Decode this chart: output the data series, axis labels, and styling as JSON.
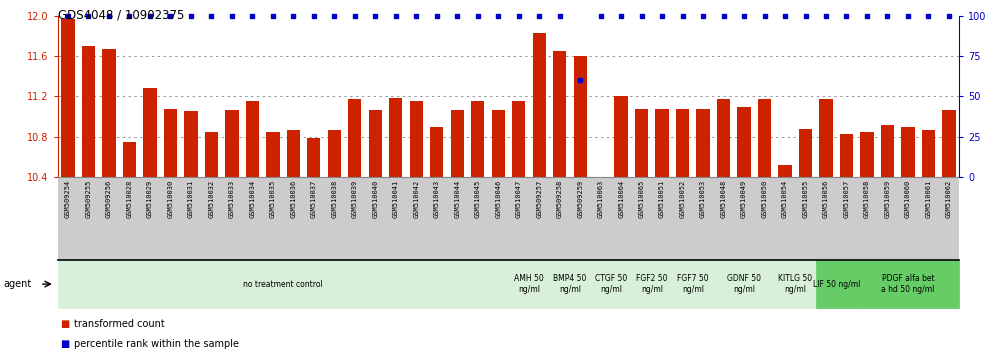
{
  "title": "GDS4048 / 10902375",
  "samples": [
    "GSM509254",
    "GSM509255",
    "GSM509256",
    "GSM510028",
    "GSM510029",
    "GSM510030",
    "GSM510031",
    "GSM510032",
    "GSM510033",
    "GSM510034",
    "GSM510035",
    "GSM510036",
    "GSM510037",
    "GSM510038",
    "GSM510039",
    "GSM510040",
    "GSM510041",
    "GSM510042",
    "GSM510043",
    "GSM510044",
    "GSM510045",
    "GSM510046",
    "GSM510047",
    "GSM509257",
    "GSM509258",
    "GSM509259",
    "GSM510063",
    "GSM510064",
    "GSM510065",
    "GSM510051",
    "GSM510052",
    "GSM510053",
    "GSM510048",
    "GSM510049",
    "GSM510050",
    "GSM510054",
    "GSM510055",
    "GSM510056",
    "GSM510057",
    "GSM510058",
    "GSM510059",
    "GSM510060",
    "GSM510061",
    "GSM510062"
  ],
  "bar_values": [
    11.97,
    11.7,
    11.67,
    10.75,
    11.28,
    11.08,
    11.06,
    10.85,
    11.07,
    11.15,
    10.85,
    10.87,
    10.79,
    10.87,
    11.17,
    11.07,
    11.18,
    11.15,
    10.9,
    11.07,
    11.15,
    11.07,
    11.15,
    11.83,
    11.65,
    11.6,
    10.4,
    11.2,
    11.08,
    11.08,
    11.08,
    11.08,
    11.17,
    11.1,
    11.17,
    10.52,
    10.88,
    11.17,
    10.83,
    10.85,
    10.92,
    10.9,
    10.87,
    11.07
  ],
  "percentile_values": [
    100,
    100,
    100,
    100,
    100,
    100,
    100,
    100,
    100,
    100,
    100,
    100,
    100,
    100,
    100,
    100,
    100,
    100,
    100,
    100,
    100,
    100,
    100,
    100,
    100,
    60,
    100,
    100,
    100,
    100,
    100,
    100,
    100,
    100,
    100,
    100,
    100,
    100,
    100,
    100,
    100,
    100,
    100,
    100
  ],
  "ylim_left": [
    10.4,
    12.0
  ],
  "ylim_right": [
    0,
    100
  ],
  "yticks_left": [
    10.4,
    10.8,
    11.2,
    11.6,
    12.0
  ],
  "yticks_right": [
    0,
    25,
    50,
    75,
    100
  ],
  "bar_color": "#cc2200",
  "dot_color": "#0000cc",
  "agent_groups": [
    {
      "label": "no treatment control",
      "start": 0,
      "end": 22,
      "color": "#d8f0d8"
    },
    {
      "label": "AMH 50\nng/ml",
      "start": 22,
      "end": 24,
      "color": "#d8f0d8"
    },
    {
      "label": "BMP4 50\nng/ml",
      "start": 24,
      "end": 26,
      "color": "#d8f0d8"
    },
    {
      "label": "CTGF 50\nng/ml",
      "start": 26,
      "end": 28,
      "color": "#d8f0d8"
    },
    {
      "label": "FGF2 50\nng/ml",
      "start": 28,
      "end": 30,
      "color": "#d8f0d8"
    },
    {
      "label": "FGF7 50\nng/ml",
      "start": 30,
      "end": 32,
      "color": "#d8f0d8"
    },
    {
      "label": "GDNF 50\nng/ml",
      "start": 32,
      "end": 35,
      "color": "#d8f0d8"
    },
    {
      "label": "KITLG 50\nng/ml",
      "start": 35,
      "end": 37,
      "color": "#d8f0d8"
    },
    {
      "label": "LIF 50 ng/ml",
      "start": 37,
      "end": 39,
      "color": "#66cc66"
    },
    {
      "label": "PDGF alfa bet\na hd 50 ng/ml",
      "start": 39,
      "end": 44,
      "color": "#66cc66"
    }
  ],
  "legend_items": [
    {
      "label": "transformed count",
      "color": "#cc2200"
    },
    {
      "label": "percentile rank within the sample",
      "color": "#0000cc"
    }
  ],
  "grid_color": "#888888",
  "background_color": "#ffffff",
  "tick_color_left": "#cc2200",
  "tick_color_right": "#0000cc",
  "xtick_bg": "#cccccc",
  "agent_bg_light": "#d8f0d8",
  "agent_bg_green": "#66cc66"
}
